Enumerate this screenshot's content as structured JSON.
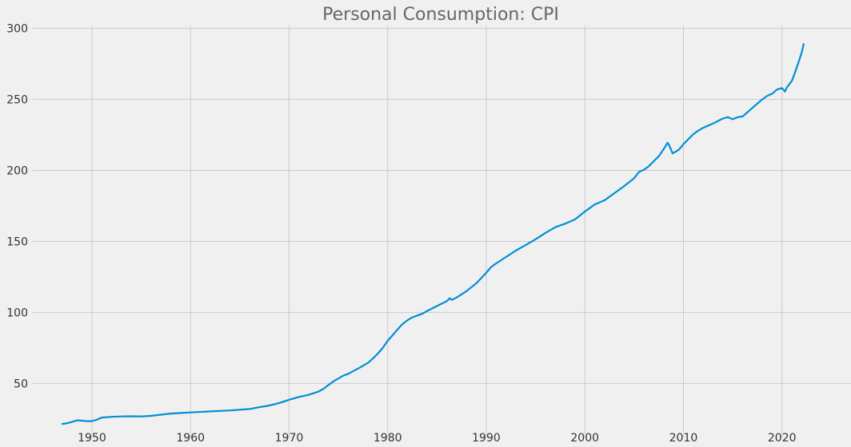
{
  "chart_data": {
    "type": "line",
    "title": "Personal Consumption: CPI",
    "xlabel": "",
    "ylabel": "",
    "xlim": [
      1944,
      2027
    ],
    "ylim": [
      12,
      302
    ],
    "grid": true,
    "x_ticks": [
      1950,
      1960,
      1970,
      1980,
      1990,
      2000,
      2010,
      2020
    ],
    "y_ticks": [
      50,
      100,
      150,
      200,
      250,
      300
    ],
    "colors": {
      "background": "#f0f0f0",
      "grid": "#cbcbcb",
      "line": "#008fd5",
      "title": "#666666",
      "ticks": "#333333"
    },
    "series": [
      {
        "x": [
          1947.0,
          1947.5,
          1948.0,
          1948.5,
          1949.0,
          1949.5,
          1950.0,
          1950.5,
          1951.0,
          1951.5,
          1952.0,
          1953.0,
          1954.0,
          1955.0,
          1956.0,
          1957.0,
          1958.0,
          1959.0,
          1960.0,
          1962.0,
          1964.0,
          1966.0,
          1967.0,
          1968.0,
          1969.0,
          1970.0,
          1971.0,
          1972.0,
          1973.0,
          1973.5,
          1974.0,
          1974.5,
          1975.0,
          1975.5,
          1976.0,
          1977.0,
          1978.0,
          1978.5,
          1979.0,
          1979.5,
          1980.0,
          1980.5,
          1981.0,
          1981.5,
          1982.0,
          1982.5,
          1983.0,
          1983.5,
          1984.0,
          1985.0,
          1986.0,
          1986.3,
          1986.5,
          1987.0,
          1988.0,
          1989.0,
          1990.0,
          1990.5,
          1991.0,
          1992.0,
          1993.0,
          1994.0,
          1995.0,
          1996.0,
          1997.0,
          1998.0,
          1999.0,
          2000.0,
          2001.0,
          2002.0,
          2003.0,
          2004.0,
          2005.0,
          2005.5,
          2006.0,
          2006.5,
          2007.0,
          2007.5,
          2008.0,
          2008.4,
          2008.6,
          2008.9,
          2009.3,
          2009.6,
          2010.0,
          2011.0,
          2011.5,
          2012.0,
          2013.0,
          2014.0,
          2014.5,
          2015.0,
          2015.5,
          2016.0,
          2017.0,
          2018.0,
          2018.5,
          2019.0,
          2019.5,
          2020.0,
          2020.3,
          2020.5,
          2021.0,
          2021.3,
          2021.6,
          2022.0,
          2022.2
        ],
        "y": [
          21.5,
          22.0,
          23.0,
          24.0,
          23.8,
          23.4,
          23.5,
          24.5,
          26.0,
          26.2,
          26.5,
          26.8,
          26.9,
          26.8,
          27.2,
          28.0,
          28.8,
          29.2,
          29.6,
          30.3,
          31.0,
          32.0,
          33.3,
          34.5,
          36.2,
          38.5,
          40.5,
          42.0,
          44.3,
          46.3,
          49.0,
          51.5,
          53.5,
          55.5,
          56.8,
          60.5,
          64.5,
          67.5,
          71.0,
          75.0,
          80.0,
          84.0,
          88.0,
          91.8,
          94.5,
          96.5,
          97.8,
          99.0,
          101.0,
          104.5,
          108.0,
          110.0,
          108.8,
          110.5,
          115.0,
          120.5,
          128.0,
          132.0,
          134.5,
          139.0,
          143.5,
          147.5,
          151.5,
          156.0,
          160.0,
          162.5,
          165.5,
          171.0,
          176.0,
          179.0,
          184.0,
          189.0,
          194.5,
          199.0,
          200.5,
          203.0,
          206.5,
          210.0,
          215.0,
          219.5,
          217.0,
          212.0,
          213.5,
          215.0,
          218.5,
          225.5,
          228.0,
          230.0,
          233.0,
          236.5,
          237.5,
          236.0,
          237.5,
          238.0,
          244.0,
          250.0,
          252.5,
          254.0,
          257.0,
          258.0,
          255.5,
          258.5,
          263.0,
          268.5,
          274.5,
          283.0,
          289.0
        ]
      }
    ]
  }
}
